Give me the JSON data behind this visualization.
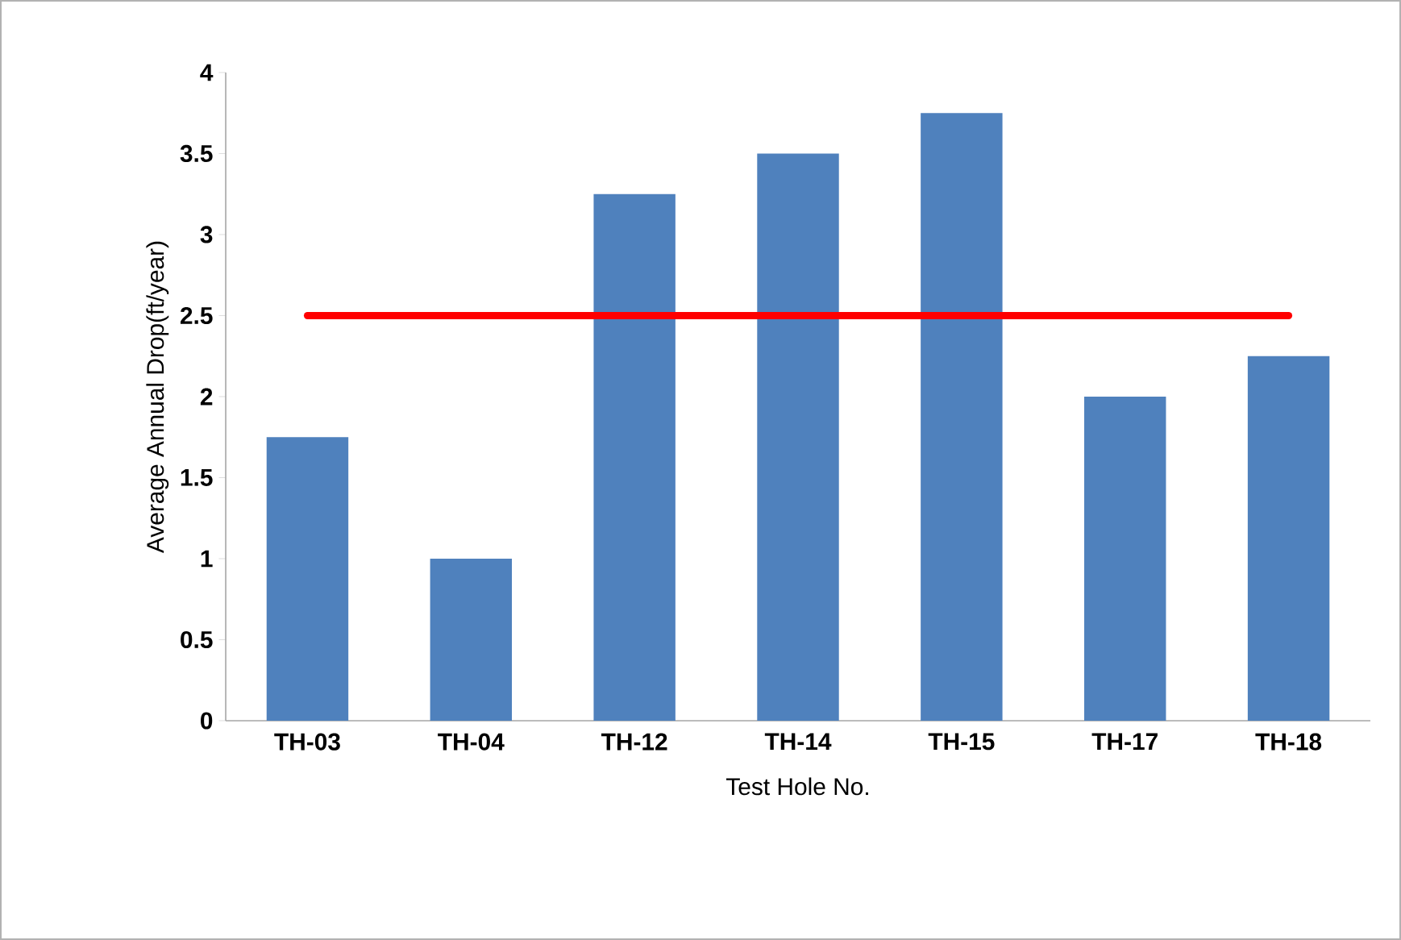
{
  "chart_data": {
    "type": "bar",
    "xlabel": "Test Hole No.",
    "ylabel": "Average Annual Drop(ft/year)",
    "categories": [
      "TH-03",
      "TH-04",
      "TH-12",
      "TH-14",
      "TH-15",
      "TH-17",
      "TH-18"
    ],
    "series": [
      {
        "color": "#4f81bd",
        "values": [
          1.75,
          1.0,
          3.25,
          3.5,
          3.75,
          2.0,
          2.25
        ]
      },
      {
        "type": "line",
        "color": "#ff0000",
        "values": [
          2.5,
          2.5,
          2.5,
          2.5,
          2.5,
          2.5,
          2.5
        ],
        "marker": "none"
      }
    ],
    "ylim": [
      0,
      4
    ],
    "yticks": [
      0,
      0.5,
      1,
      1.5,
      2,
      2.5,
      3,
      3.5,
      4
    ]
  }
}
